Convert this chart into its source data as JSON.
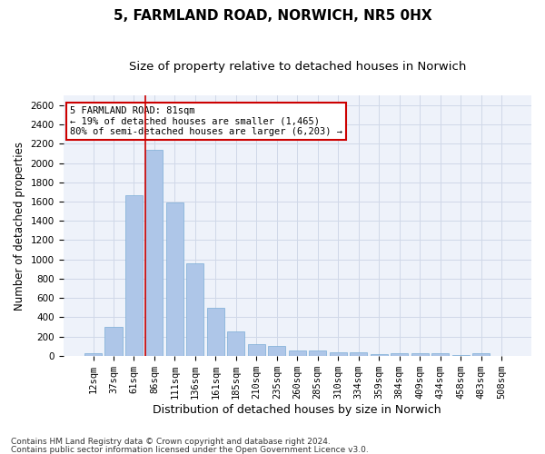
{
  "title1": "5, FARMLAND ROAD, NORWICH, NR5 0HX",
  "title2": "Size of property relative to detached houses in Norwich",
  "xlabel": "Distribution of detached houses by size in Norwich",
  "ylabel": "Number of detached properties",
  "categories": [
    "12sqm",
    "37sqm",
    "61sqm",
    "86sqm",
    "111sqm",
    "136sqm",
    "161sqm",
    "185sqm",
    "210sqm",
    "235sqm",
    "260sqm",
    "285sqm",
    "310sqm",
    "334sqm",
    "359sqm",
    "384sqm",
    "409sqm",
    "434sqm",
    "458sqm",
    "483sqm",
    "508sqm"
  ],
  "values": [
    25,
    300,
    1670,
    2140,
    1590,
    960,
    500,
    250,
    120,
    100,
    50,
    50,
    35,
    35,
    20,
    30,
    25,
    25,
    5,
    25,
    0
  ],
  "bar_color": "#aec6e8",
  "bar_edge_color": "#7aacd6",
  "grid_color": "#d0d8e8",
  "bg_color": "#eef2fa",
  "vline_index": 3,
  "vline_color": "#cc0000",
  "annotation_line1": "5 FARMLAND ROAD: 81sqm",
  "annotation_line2": "← 19% of detached houses are smaller (1,465)",
  "annotation_line3": "80% of semi-detached houses are larger (6,203) →",
  "annotation_box_color": "#cc0000",
  "annotation_bg": "#ffffff",
  "ylim": [
    0,
    2700
  ],
  "yticks": [
    0,
    200,
    400,
    600,
    800,
    1000,
    1200,
    1400,
    1600,
    1800,
    2000,
    2200,
    2400,
    2600
  ],
  "footer1": "Contains HM Land Registry data © Crown copyright and database right 2024.",
  "footer2": "Contains public sector information licensed under the Open Government Licence v3.0.",
  "title1_fontsize": 11,
  "title2_fontsize": 9.5,
  "xlabel_fontsize": 9,
  "ylabel_fontsize": 8.5,
  "tick_fontsize": 7.5,
  "annot_fontsize": 7.5,
  "footer_fontsize": 6.5
}
